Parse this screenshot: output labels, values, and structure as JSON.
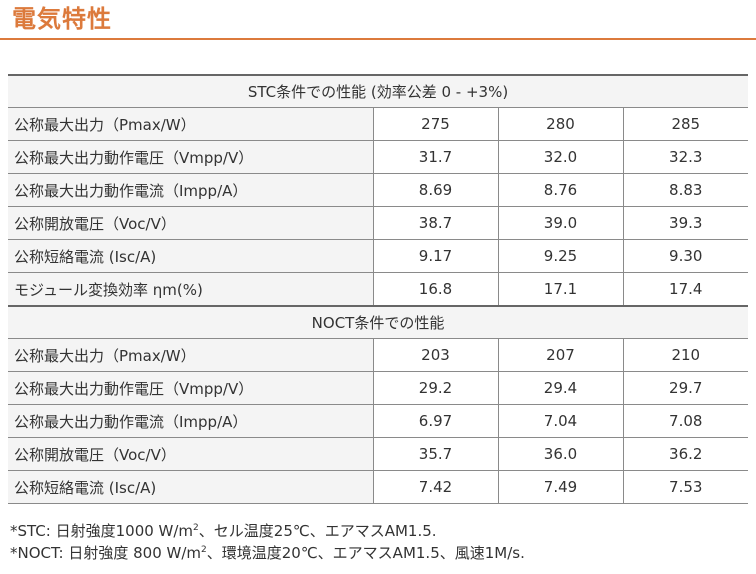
{
  "title": "電気特性",
  "stc": {
    "heading": "STC条件での性能 (効率公差 0 - +3%)",
    "rows": [
      {
        "label": "公称最大出力（Pmax/W）",
        "values": [
          "275",
          "280",
          "285"
        ]
      },
      {
        "label": "公称最大出力動作電圧（Vmpp/V）",
        "values": [
          "31.7",
          "32.0",
          "32.3"
        ]
      },
      {
        "label": "公称最大出力動作電流（Impp/A）",
        "values": [
          "8.69",
          "8.76",
          "8.83"
        ]
      },
      {
        "label": "公称開放電圧（Voc/V）",
        "values": [
          "38.7",
          "39.0",
          "39.3"
        ]
      },
      {
        "label": "公称短絡電流 (Isc/A)",
        "values": [
          "9.17",
          "9.25",
          "9.30"
        ]
      },
      {
        "label": "モジュール変換効率 ηm(%)",
        "values": [
          "16.8",
          "17.1",
          "17.4"
        ]
      }
    ]
  },
  "noct": {
    "heading": "NOCT条件での性能",
    "rows": [
      {
        "label": "公称最大出力（Pmax/W）",
        "values": [
          "203",
          "207",
          "210"
        ]
      },
      {
        "label": "公称最大出力動作電圧（Vmpp/V）",
        "values": [
          "29.2",
          "29.4",
          "29.7"
        ]
      },
      {
        "label": "公称最大出力動作電流（Impp/A）",
        "values": [
          "6.97",
          "7.04",
          "7.08"
        ]
      },
      {
        "label": "公称開放電圧（Voc/V）",
        "values": [
          "35.7",
          "36.0",
          "36.2"
        ]
      },
      {
        "label": "公称短絡電流 (Isc/A)",
        "values": [
          "7.42",
          "7.49",
          "7.53"
        ]
      }
    ]
  },
  "notes": {
    "stc_prefix": "*STC: 日射強度1000 W/m",
    "stc_sup": "2",
    "stc_suffix": "、セル温度25℃、エアマスAM1.5.",
    "noct_prefix": "*NOCT: 日射強度 800 W/m",
    "noct_sup": "2",
    "noct_suffix": "、環境温度20℃、エアマスAM1.5、風速1M/s."
  },
  "colors": {
    "accent": "#dc7a3c"
  }
}
